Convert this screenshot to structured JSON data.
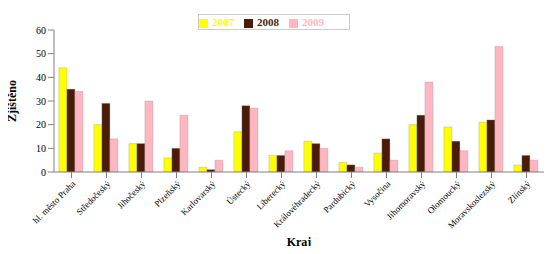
{
  "chart_data": {
    "type": "bar",
    "x_label": "Kraj",
    "y_label": "Zjištěno",
    "categories": [
      "hl. město Praha",
      "Středočeský",
      "Jihočeský",
      "Plzeňský",
      "Karlovarský",
      "Ústecký",
      "Liberecký",
      "Královéhradecký",
      "Pardubický",
      "Vysočina",
      "Jihomoravský",
      "Olomoucký",
      "Moravskoslezský",
      "Zlínský"
    ],
    "series": [
      {
        "name": "2007",
        "color": "#ffff00",
        "values": [
          44,
          20,
          12,
          6,
          2,
          17,
          7,
          13,
          4,
          8,
          20,
          19,
          21,
          3
        ]
      },
      {
        "name": "2008",
        "color": "#4a1c08",
        "values": [
          35,
          29,
          12,
          10,
          1,
          28,
          7,
          12,
          3,
          14,
          24,
          13,
          22,
          7
        ]
      },
      {
        "name": "2009",
        "color": "#ffb6c1",
        "values": [
          34,
          14,
          30,
          24,
          5,
          27,
          9,
          10,
          2,
          5,
          38,
          9,
          53,
          5
        ]
      }
    ],
    "ylim": [
      0,
      60
    ],
    "yticks": [
      0,
      10,
      20,
      30,
      40,
      50,
      60
    ],
    "grid": false,
    "legend": "top"
  }
}
